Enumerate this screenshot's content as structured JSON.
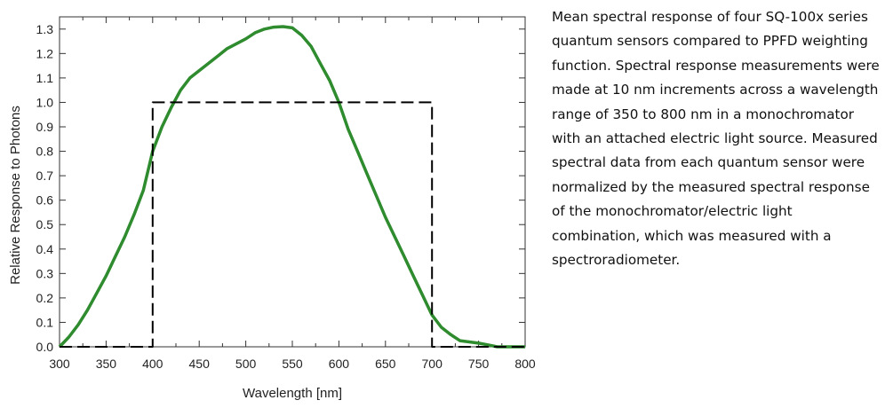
{
  "chart_data": {
    "type": "line",
    "title": "",
    "xlabel": "Wavelength [nm]",
    "ylabel": "Relative Response to Photons",
    "xlim": [
      300,
      800
    ],
    "ylim": [
      0,
      1.35
    ],
    "xticks": [
      300,
      350,
      400,
      450,
      500,
      550,
      600,
      650,
      700,
      750,
      800
    ],
    "yticks": [
      0.0,
      0.1,
      0.2,
      0.3,
      0.4,
      0.5,
      0.6,
      0.7,
      0.8,
      0.9,
      1.0,
      1.1,
      1.2,
      1.3
    ],
    "grid": false,
    "series": [
      {
        "style": "solid",
        "color": "#2e8b2e",
        "x": [
          300,
          310,
          320,
          330,
          340,
          350,
          360,
          370,
          380,
          390,
          400,
          410,
          420,
          430,
          440,
          450,
          460,
          470,
          480,
          490,
          500,
          510,
          520,
          530,
          540,
          550,
          560,
          570,
          580,
          590,
          600,
          610,
          620,
          630,
          640,
          650,
          660,
          670,
          680,
          690,
          700,
          710,
          720,
          730,
          740,
          750,
          760,
          770,
          780,
          790,
          800
        ],
        "y": [
          0,
          0.04,
          0.09,
          0.15,
          0.22,
          0.29,
          0.37,
          0.45,
          0.54,
          0.64,
          0.8,
          0.9,
          0.98,
          1.05,
          1.1,
          1.13,
          1.16,
          1.19,
          1.22,
          1.24,
          1.26,
          1.285,
          1.3,
          1.308,
          1.31,
          1.305,
          1.275,
          1.23,
          1.16,
          1.09,
          1.0,
          0.89,
          0.8,
          0.71,
          0.62,
          0.53,
          0.45,
          0.37,
          0.29,
          0.21,
          0.13,
          0.08,
          0.05,
          0.025,
          0.02,
          0.015,
          0.008,
          0,
          0,
          0,
          0
        ]
      },
      {
        "style": "dashed",
        "color": "#000000",
        "x": [
          300,
          400,
          400,
          700,
          700,
          800
        ],
        "y": [
          0,
          0,
          1,
          1,
          0,
          0
        ]
      }
    ]
  },
  "caption": "Mean spectral response of four SQ-100x series quantum sensors compared to PPFD weighting function. Spectral response measurements were made at 10 nm increments across a wavelength range of 350 to 800 nm in a monochromator with an attached electric light source. Measured spectral data from each quantum sensor were normalized by the measured spectral response of the monochromator/electric light combination, which was measured with a spectroradiometer."
}
